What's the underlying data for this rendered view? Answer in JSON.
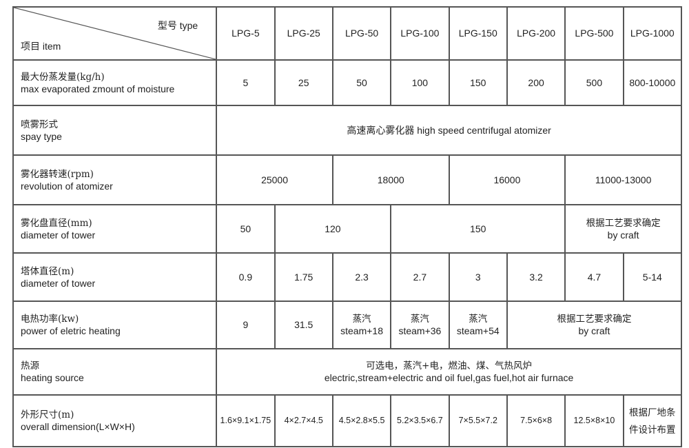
{
  "header": {
    "type_label": "型号 type",
    "item_label": "项目 item",
    "models": [
      "LPG-5",
      "LPG-25",
      "LPG-50",
      "LPG-100",
      "LPG-150",
      "LPG-200",
      "LPG-500",
      "LPG-1000"
    ]
  },
  "rows": {
    "evaporation": {
      "cn": "最大份蒸发量(kg/h)",
      "en": "max evaporated zmount of moisture",
      "values": [
        "5",
        "25",
        "50",
        "100",
        "150",
        "200",
        "500",
        "800-10000"
      ]
    },
    "spray": {
      "cn": "喷雾形式",
      "en": "spay type",
      "value": "高速离心雾化器 high speed centrifugal atomizer"
    },
    "atomizer": {
      "cn": "雾化器转速(rpm)",
      "en": "revolution of atomizer",
      "values": [
        "25000",
        "18000",
        "16000",
        "11000-13000"
      ]
    },
    "disc": {
      "cn": "雾化盘直径(mm)",
      "en": "diameter of tower",
      "values": [
        "50",
        "120",
        "150"
      ],
      "craft_cn": "根据工艺要求确定",
      "craft_en": "by craft"
    },
    "tower": {
      "cn": "塔体直径(m)",
      "en": "diameter of tower",
      "values": [
        "0.9",
        "1.75",
        "2.3",
        "2.7",
        "3",
        "3.2",
        "4.7",
        "5-14"
      ]
    },
    "power": {
      "cn": "电热功率(kw)",
      "en": "power of eletric heating",
      "values": [
        "9",
        "31.5"
      ],
      "steam": [
        {
          "cn": "蒸汽",
          "en": "steam+18"
        },
        {
          "cn": "蒸汽",
          "en": "steam+36"
        },
        {
          "cn": "蒸汽",
          "en": "steam+54"
        }
      ],
      "craft_cn": "根据工艺要求确定",
      "craft_en": "by craft"
    },
    "heating": {
      "cn": "热源",
      "en": "heating source",
      "value_cn": "可选电，蒸汽+电，燃油、煤、气热风炉",
      "value_en": "electric,stream+electric and oil fuel,gas fuel,hot air furnace"
    },
    "dimension": {
      "cn": "外形尺寸(m)",
      "en": "overall dimension(L×W×H)",
      "values": [
        "1.6×9.1×1.75",
        "4×2.7×4.5",
        "4.5×2.8×5.5",
        "5.2×3.5×6.7",
        "7×5.5×7.2",
        "7.5×6×8",
        "12.5×8×10"
      ],
      "last_cn_1": "根据厂地条",
      "last_cn_2": "件设计布置"
    }
  }
}
